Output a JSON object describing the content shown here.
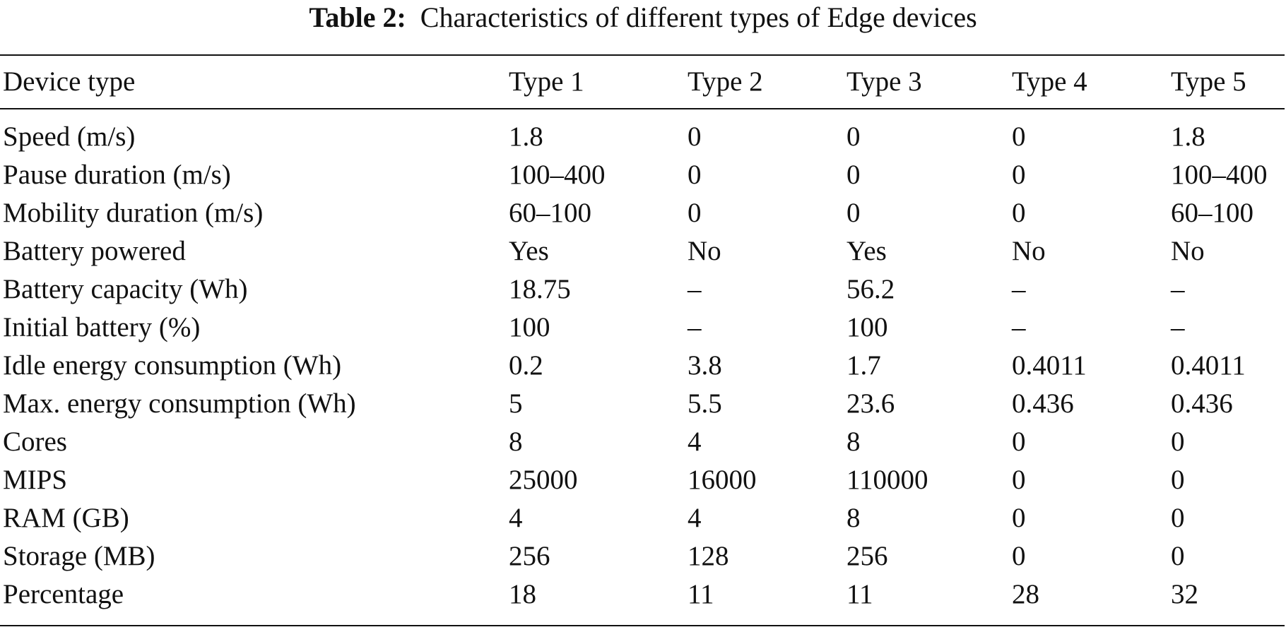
{
  "caption": {
    "label": "Table 2:",
    "text": "Characteristics of different types of Edge devices"
  },
  "table": {
    "headers": [
      "Device type",
      "Type 1",
      "Type 2",
      "Type 3",
      "Type 4",
      "Type 5"
    ],
    "rows": [
      [
        "Speed (m/s)",
        "1.8",
        "0",
        "0",
        "0",
        "1.8"
      ],
      [
        "Pause duration (m/s)",
        "100–400",
        "0",
        "0",
        "0",
        "100–400"
      ],
      [
        "Mobility duration (m/s)",
        "60–100",
        "0",
        "0",
        "0",
        "60–100"
      ],
      [
        "Battery powered",
        "Yes",
        "No",
        "Yes",
        "No",
        "No"
      ],
      [
        "Battery capacity (Wh)",
        "18.75",
        "–",
        "56.2",
        "–",
        "–"
      ],
      [
        "Initial battery (%)",
        "100",
        "–",
        "100",
        "–",
        "–"
      ],
      [
        "Idle energy consumption (Wh)",
        "0.2",
        "3.8",
        "1.7",
        "0.4011",
        "0.4011"
      ],
      [
        "Max. energy consumption (Wh)",
        "5",
        "5.5",
        "23.6",
        "0.436",
        "0.436"
      ],
      [
        "Cores",
        "8",
        "4",
        "8",
        "0",
        "0"
      ],
      [
        "MIPS",
        "25000",
        "16000",
        "110000",
        "0",
        "0"
      ],
      [
        "RAM (GB)",
        "4",
        "4",
        "8",
        "0",
        "0"
      ],
      [
        "Storage (MB)",
        "256",
        "128",
        "256",
        "0",
        "0"
      ],
      [
        "Percentage",
        "18",
        "11",
        "11",
        "28",
        "32"
      ]
    ]
  }
}
